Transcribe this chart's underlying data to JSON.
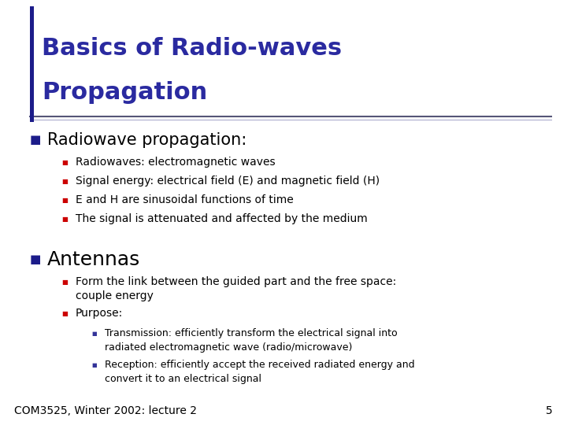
{
  "title_line1": "Basics of Radio-waves",
  "title_line2": "Propagation",
  "title_color": "#2A2AA0",
  "bg_color": "#FFFFFF",
  "footer_text": "COM3525, Winter 2002: lecture 2",
  "page_number": "5",
  "footer_color": "#000000",
  "bullet1_color": "#1C1C8A",
  "bullet2_color": "#CC0000",
  "bullet3_color": "#333399",
  "section1_header": "Radiowave propagation:",
  "section1_items": [
    "Radiowaves: electromagnetic waves",
    "Signal energy: electrical field (E) and magnetic field (H)",
    "E and H are sinusoidal functions of time",
    "The signal is attenuated and affected by the medium"
  ],
  "section2_header": "Antennas",
  "section2_sub1_line1": "Form the link between the guided part and the free space:",
  "section2_sub1_line2": "couple energy",
  "section2_sub2_header": "Purpose:",
  "section2_sub2_items": [
    [
      "Transmission: efficiently transform the electrical signal into",
      "radiated electromagnetic wave (radio/microwave)"
    ],
    [
      "Reception: efficiently accept the received radiated energy and",
      "convert it to an electrical signal"
    ]
  ],
  "title_font_size": 22,
  "section1_header_font_size": 15,
  "section2_header_font_size": 18,
  "body_font_size": 10,
  "sub3_font_size": 9,
  "footer_font_size": 10,
  "bar_color": "#1C1C8A",
  "hline_color": "#555577",
  "hline_color2": "#AAAACC"
}
